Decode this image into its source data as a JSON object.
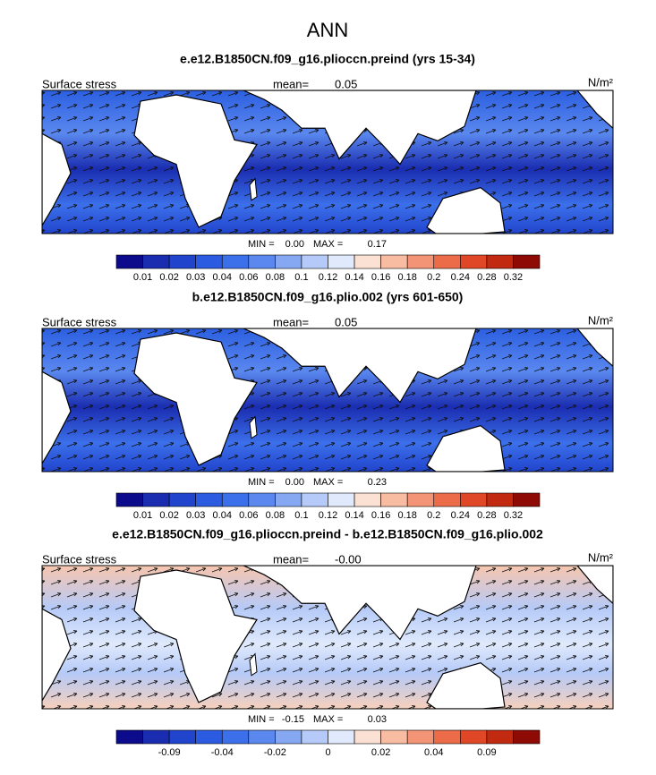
{
  "title": "ANN",
  "colorbar_colors": [
    "#0b0b8c",
    "#1a2db0",
    "#2044cc",
    "#2a5be0",
    "#3c70ea",
    "#5a88ef",
    "#86a8f3",
    "#b5caf8",
    "#e0eafc",
    "#fbe1d4",
    "#f7bca2",
    "#f29475",
    "#ec6c4a",
    "#e04727",
    "#c12a10",
    "#8e0a05"
  ],
  "panels": [
    {
      "title": "e.e12.B1850CN.f09_g16.plioccn.preind (yrs 15-34)",
      "left_label": "Surface stress",
      "mean_label": "mean=",
      "mean": "0.05",
      "units": "N/m²",
      "min_label": "MIN =",
      "min": "0.00",
      "max_label": "MAX =",
      "max": "0.17",
      "colorbar_labels": [
        "0.01",
        "0.02",
        "0.03",
        "0.04",
        "0.06",
        "0.08",
        "0.1",
        "0.12",
        "0.14",
        "0.16",
        "0.18",
        "0.2",
        "0.24",
        "0.28",
        "0.32"
      ]
    },
    {
      "title": "b.e12.B1850CN.f09_g16.plio.002 (yrs 601-650)",
      "left_label": "Surface stress",
      "mean_label": "mean=",
      "mean": "0.05",
      "units": "N/m²",
      "min_label": "MIN =",
      "min": "0.00",
      "max_label": "MAX =",
      "max": "0.23",
      "colorbar_labels": [
        "0.01",
        "0.02",
        "0.03",
        "0.04",
        "0.06",
        "0.08",
        "0.1",
        "0.12",
        "0.14",
        "0.16",
        "0.18",
        "0.2",
        "0.24",
        "0.28",
        "0.32"
      ]
    },
    {
      "title": "e.e12.B1850CN.f09_g16.plioccn.preind - b.e12.B1850CN.f09_g16.plio.002",
      "left_label": "Surface stress",
      "mean_label": "mean=",
      "mean": "-0.00",
      "units": "N/m²",
      "min_label": "MIN =",
      "min": "-0.15",
      "max_label": "MAX =",
      "max": "0.03",
      "colorbar_labels": [
        null,
        "-0.09",
        null,
        "-0.04",
        null,
        "-0.02",
        null,
        "0",
        null,
        "0.02",
        null,
        "0.04",
        null,
        "0.09",
        null
      ]
    }
  ]
}
